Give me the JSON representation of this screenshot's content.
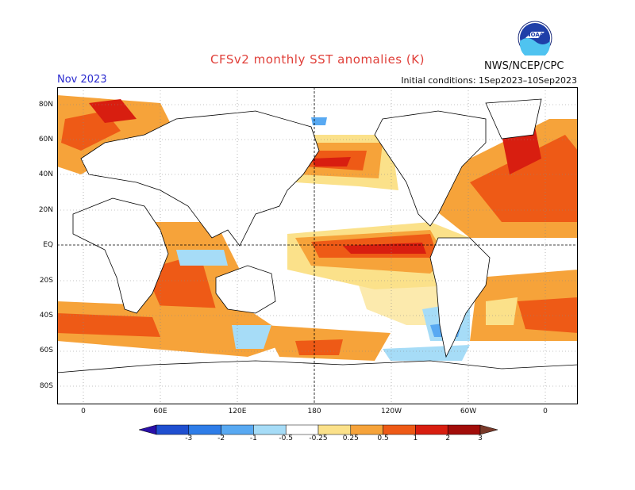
{
  "title": "CFSv2 monthly SST anomalies (K)",
  "org": "NWS/NCEP/CPC",
  "logo_text": "NOAA",
  "valid_month": "Nov 2023",
  "initial_conditions": "Initial conditions: 1Sep2023–10Sep2023",
  "lat_labels": [
    "80N",
    "60N",
    "40N",
    "20N",
    "EQ",
    "20S",
    "40S",
    "60S",
    "80S"
  ],
  "lon_labels": [
    "0",
    "60E",
    "120E",
    "180",
    "120W",
    "60W",
    "0"
  ],
  "colorbar": {
    "labels": [
      "-3",
      "-2",
      "-1",
      "-0.5",
      "-0.25",
      "0.25",
      "0.5",
      "1",
      "2",
      "3"
    ],
    "colors": [
      "#2a10a8",
      "#1f4fd0",
      "#2e7de8",
      "#58a9f2",
      "#a6dcf7",
      "#ffffff",
      "#fbe18a",
      "#f6a33a",
      "#ee5a16",
      "#d81e10",
      "#a20d0a",
      "#7a3a2a"
    ]
  }
}
